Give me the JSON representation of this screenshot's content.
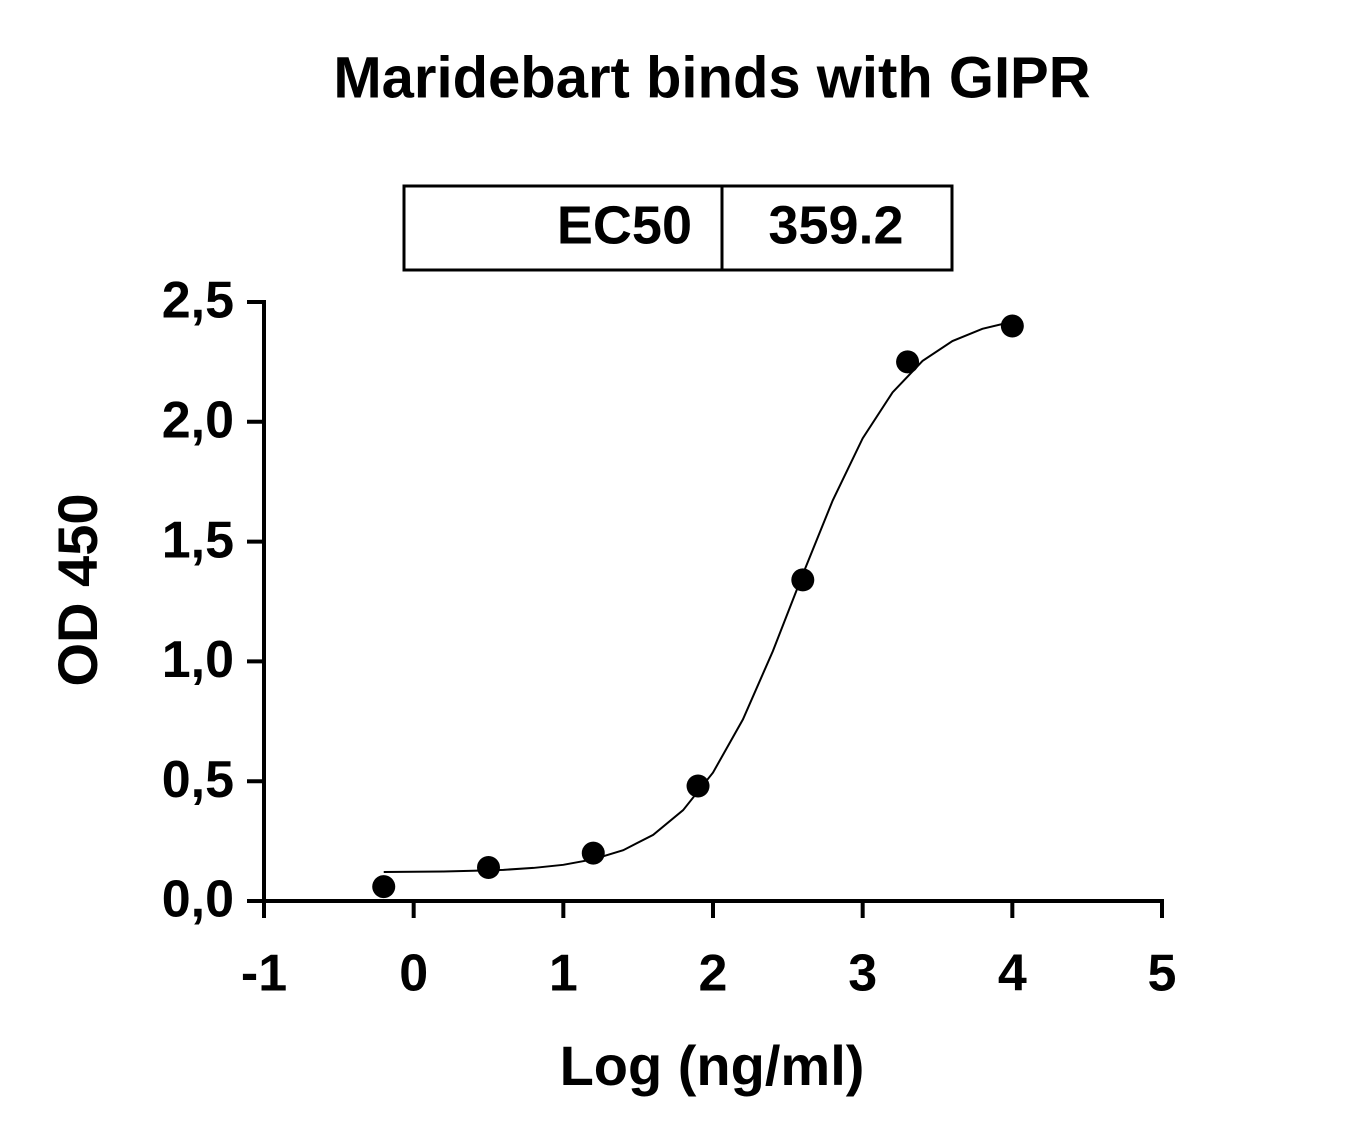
{
  "chart_data": {
    "type": "scatter",
    "title": "Maridebart binds with GIPR",
    "ec50_table": {
      "label": "EC50",
      "value": "359.2"
    },
    "x_label": "Log (ng/ml)",
    "y_label": "OD 450",
    "xlim": [
      -1,
      5
    ],
    "xticks": [
      -1,
      0,
      1,
      2,
      3,
      4,
      5
    ],
    "ylim": [
      0,
      2.5
    ],
    "yticks": [
      {
        "value": 0,
        "label": "0,0"
      },
      {
        "value": 0.5,
        "label": "0,5"
      },
      {
        "value": 1,
        "label": "1,0"
      },
      {
        "value": 1.5,
        "label": "1,5"
      },
      {
        "value": 2,
        "label": "2,0"
      },
      {
        "value": 2.5,
        "label": "2,5"
      }
    ],
    "series": [
      {
        "kind": "points",
        "color": "#000000",
        "x": [
          -0.2,
          0.5,
          1.2,
          1.9,
          2.6,
          3.3,
          4.0
        ],
        "values": [
          0.06,
          0.14,
          0.2,
          0.48,
          1.34,
          2.25,
          2.4
        ]
      },
      {
        "kind": "curve",
        "color": "#000000",
        "x": [
          -0.2,
          0,
          0.2,
          0.4,
          0.6,
          0.8,
          1.0,
          1.2,
          1.4,
          1.6,
          1.8,
          2.0,
          2.2,
          2.4,
          2.6,
          2.8,
          3.0,
          3.2,
          3.4,
          3.6,
          3.8,
          4.0
        ],
        "values": [
          0.121,
          0.122,
          0.123,
          0.126,
          0.13,
          0.138,
          0.151,
          0.174,
          0.212,
          0.276,
          0.379,
          0.536,
          0.758,
          1.043,
          1.363,
          1.672,
          1.931,
          2.123,
          2.254,
          2.337,
          2.388,
          2.418
        ]
      }
    ]
  }
}
